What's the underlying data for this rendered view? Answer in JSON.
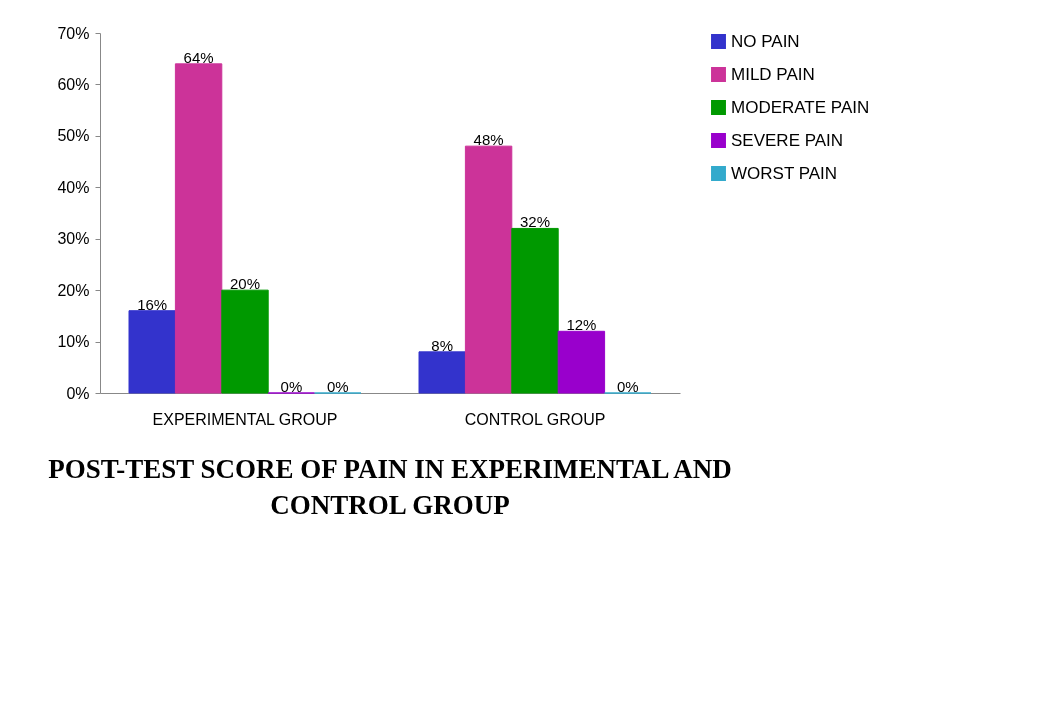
{
  "chart_data": {
    "type": "bar",
    "title": "POST-TEST SCORE OF PAIN IN EXPERIMENTAL AND CONTROL GROUP",
    "categories": [
      "EXPERIMENTAL GROUP",
      "CONTROL GROUP"
    ],
    "series": [
      {
        "name": "NO PAIN",
        "color": "#3333cc",
        "values": [
          16,
          8
        ],
        "value_labels": [
          "16%",
          "8%"
        ]
      },
      {
        "name": "MILD PAIN",
        "color": "#cc3399",
        "values": [
          64,
          48
        ],
        "value_labels": [
          "64%",
          "48%"
        ]
      },
      {
        "name": "MODERATE PAIN",
        "color": "#009900",
        "values": [
          20,
          32
        ],
        "value_labels": [
          "20%",
          "32%"
        ]
      },
      {
        "name": "SEVERE PAIN",
        "color": "#9900cc",
        "values": [
          0,
          12
        ],
        "value_labels": [
          "0%",
          "12%"
        ]
      },
      {
        "name": "WORST PAIN",
        "color": "#33aacc",
        "values": [
          0,
          0
        ],
        "value_labels": [
          "0%",
          "0%"
        ]
      }
    ],
    "ylim": [
      0,
      70
    ],
    "yticks": [
      {
        "value": 0,
        "label": "0%"
      },
      {
        "value": 10,
        "label": "10%"
      },
      {
        "value": 20,
        "label": "20%"
      },
      {
        "value": 30,
        "label": "30%"
      },
      {
        "value": 40,
        "label": "40%"
      },
      {
        "value": 50,
        "label": "50%"
      },
      {
        "value": 60,
        "label": "60%"
      },
      {
        "value": 70,
        "label": "70%"
      }
    ],
    "grid": false,
    "legend": "right"
  }
}
